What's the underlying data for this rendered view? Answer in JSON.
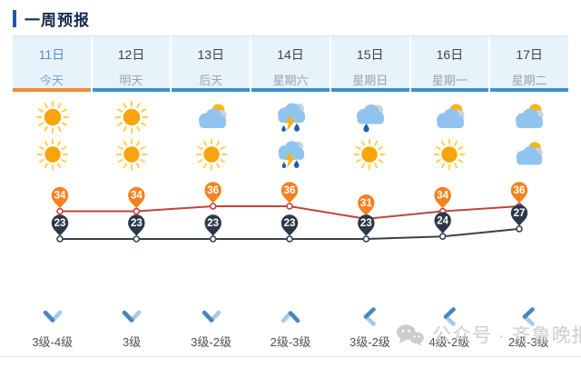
{
  "header": {
    "title": "一周预报"
  },
  "days": [
    {
      "date": "11日",
      "label": "今天",
      "day_icon": "sunny",
      "night_icon": "sunny",
      "high": 34,
      "low": 23,
      "wind_dir": "down",
      "wind_level": "3级-4级",
      "active": true
    },
    {
      "date": "12日",
      "label": "明天",
      "day_icon": "sunny",
      "night_icon": "sunny",
      "high": 34,
      "low": 23,
      "wind_dir": "down",
      "wind_level": "3级",
      "active": false
    },
    {
      "date": "13日",
      "label": "后天",
      "day_icon": "partly-cloudy",
      "night_icon": "sunny",
      "high": 36,
      "low": 23,
      "wind_dir": "down",
      "wind_level": "3级-2级",
      "active": false
    },
    {
      "date": "14日",
      "label": "星期六",
      "day_icon": "thunderstorm",
      "night_icon": "thunderstorm",
      "high": 36,
      "low": 23,
      "wind_dir": "up",
      "wind_level": "2级-3级",
      "active": false
    },
    {
      "date": "15日",
      "label": "星期日",
      "day_icon": "light-rain",
      "night_icon": "sunny",
      "high": 31,
      "low": 23,
      "wind_dir": "left",
      "wind_level": "3级-2级",
      "active": false
    },
    {
      "date": "16日",
      "label": "星期一",
      "day_icon": "partly-cloudy",
      "night_icon": "sunny",
      "high": 34,
      "low": 24,
      "wind_dir": "left",
      "wind_level": "4级-2级",
      "active": false
    },
    {
      "date": "17日",
      "label": "星期二",
      "day_icon": "partly-cloudy",
      "night_icon": "partly-cloudy",
      "high": 36,
      "low": 27,
      "wind_dir": "left",
      "wind_level": "2级-3级",
      "active": false
    }
  ],
  "chart_data": {
    "type": "line",
    "categories": [
      "11日",
      "12日",
      "13日",
      "14日",
      "15日",
      "16日",
      "17日"
    ],
    "series": [
      {
        "name": "high",
        "values": [
          34,
          34,
          36,
          36,
          31,
          34,
          36
        ],
        "line_color": "#C4433A",
        "pin_color": "#F58220"
      },
      {
        "name": "low",
        "values": [
          23,
          23,
          23,
          23,
          23,
          24,
          27
        ],
        "line_color": "#36434F",
        "pin_color": "#2B3847"
      }
    ],
    "ylim": [
      23,
      36
    ],
    "grid": false,
    "legend": "none",
    "marker_style": "pin"
  },
  "watermark": {
    "text": "公众号 · 齐鲁晚报"
  },
  "colors": {
    "header_text": "#16294E",
    "header_bar": "#2456A8",
    "tab_bg": "#E7F3FB",
    "tab_underline_active": "#EF8A31",
    "tab_underline": "#3D8FD2",
    "active_text": "#5A8FBE",
    "date_text": "#3E4347",
    "dayname_text": "#9BA2AA",
    "high_line": "#C4433A",
    "high_pin": "#F58220",
    "low_line": "#36434F",
    "low_pin": "#2B3847",
    "wind_arrow_dark": "#4886BE",
    "wind_arrow_light": "#A6C9E8",
    "wind_text": "#4A5055",
    "watermark_gray": "#C6C9CB",
    "sun_core": "#F7A50A",
    "sun_rays": "#FFCF4B",
    "cloud_blue": "#90C4EF",
    "cloud_gray": "#C7D3DD",
    "rain_drop": "#1D5FAE",
    "lightning": "#F9AF12"
  }
}
